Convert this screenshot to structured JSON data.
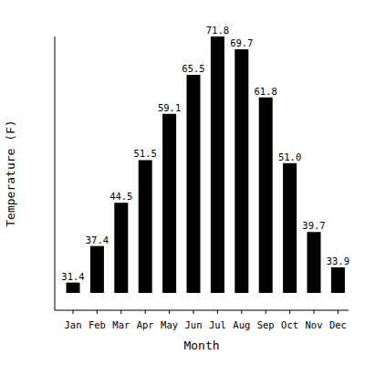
{
  "chart_data": {
    "type": "bar",
    "x_label": "Month",
    "y_label": "Temperature (F)",
    "categories": [
      "Jan",
      "Feb",
      "Mar",
      "Apr",
      "May",
      "Jun",
      "Jul",
      "Aug",
      "Sep",
      "Oct",
      "Nov",
      "Dec"
    ],
    "values": [
      31.4,
      37.4,
      44.5,
      51.5,
      59.1,
      65.5,
      71.8,
      69.7,
      61.8,
      51.0,
      39.7,
      33.9
    ],
    "value_labels": [
      "31.4",
      "37.4",
      "44.5",
      "51.5",
      "59.1",
      "65.5",
      "71.8",
      "69.7",
      "61.8",
      "51.0",
      "39.7",
      "33.9"
    ],
    "color": "#000000",
    "ylim": [
      29.7,
      71.8
    ],
    "data_labels": true,
    "tick_labels": "x",
    "grid": false
  }
}
